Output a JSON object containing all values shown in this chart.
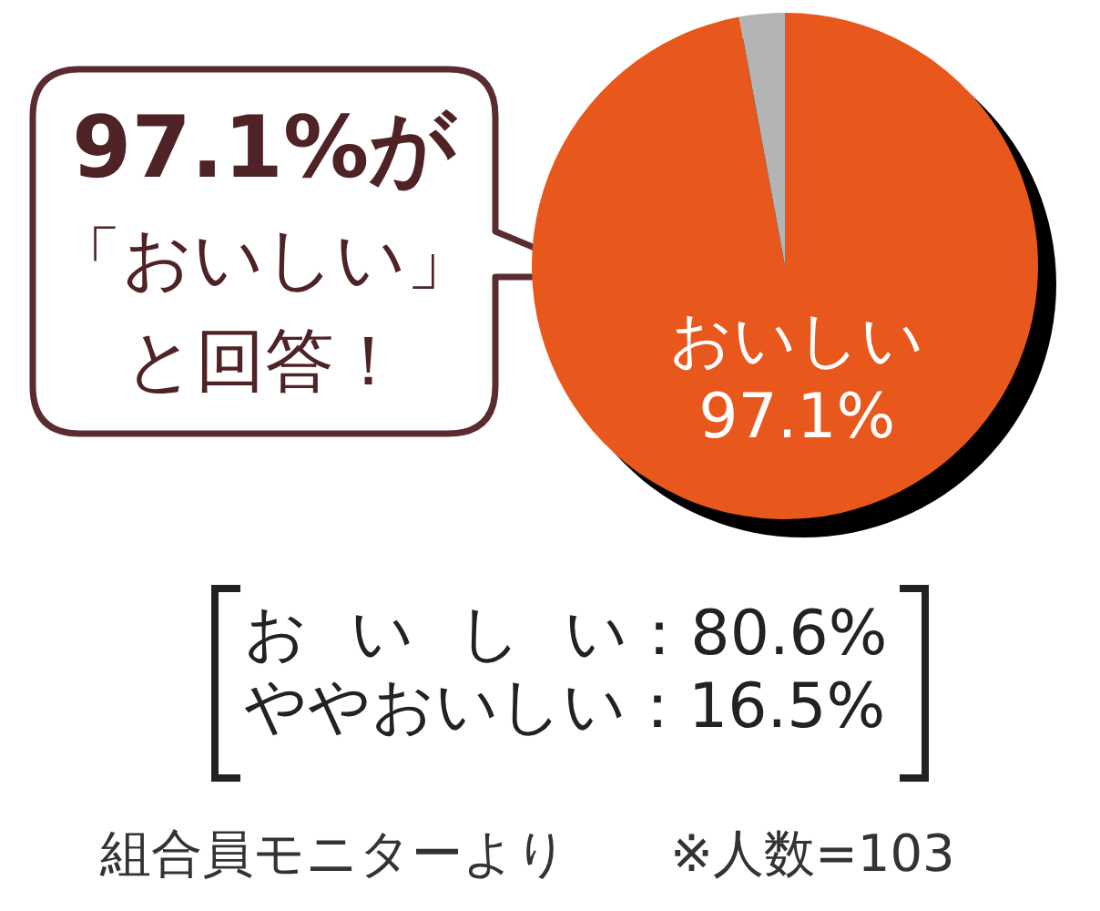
{
  "chart_data": {
    "type": "pie",
    "categories": [
      "おいしい",
      null
    ],
    "values": [
      97.1,
      2.9
    ],
    "colors": [
      "#e8571b",
      "#b4b4b4"
    ],
    "value_labels": [
      "97.1%",
      null
    ],
    "annotations": [
      "97.1%が",
      "「おいしい」",
      "と回答！",
      "お い し い：80.6%",
      "ややおいしい：16.5%",
      "組合員モニターより",
      "※人数=103"
    ]
  }
}
